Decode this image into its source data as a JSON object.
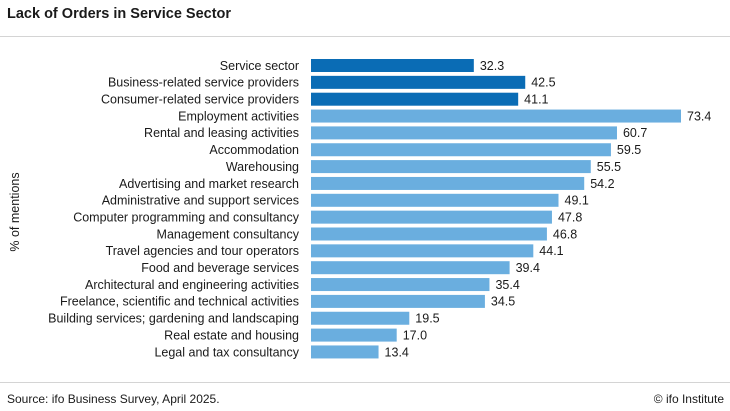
{
  "title": "Lack of Orders in Service Sector",
  "source": "Source: ifo Business Survey, April 2025.",
  "credit": "© ifo Institute",
  "colors": {
    "dark_bar": "#0a6cb5",
    "light_bar": "#6aaedf"
  },
  "chart_data": {
    "type": "bar",
    "orientation": "horizontal",
    "ylabel": "% of mentions",
    "categories": [
      "Service sector",
      "Business-related service providers",
      "Consumer-related service providers",
      "Employment activities",
      "Rental and leasing activities",
      "Accommodation",
      "Warehousing",
      "Advertising and market research",
      "Administrative and support services",
      "Computer programming and consultancy",
      "Management consultancy",
      "Travel agencies and tour operators",
      "Food and beverage services",
      "Architectural and engineering activities",
      "Freelance, scientific and technical activities",
      "Building services; gardening and landscaping",
      "Real estate and housing",
      "Legal and tax consultancy"
    ],
    "values": [
      32.3,
      42.5,
      41.1,
      73.4,
      60.7,
      59.5,
      55.5,
      54.2,
      49.1,
      47.8,
      46.8,
      44.1,
      39.4,
      35.4,
      34.5,
      19.5,
      17.0,
      13.4
    ],
    "value_labels": [
      "32.3",
      "42.5",
      "41.1",
      "73.4",
      "60.7",
      "59.5",
      "55.5",
      "54.2",
      "49.1",
      "47.8",
      "46.8",
      "44.1",
      "39.4",
      "35.4",
      "34.5",
      "19.5",
      "17.0",
      "13.4"
    ],
    "highlighted": [
      true,
      true,
      true,
      false,
      false,
      false,
      false,
      false,
      false,
      false,
      false,
      false,
      false,
      false,
      false,
      false,
      false,
      false
    ],
    "xlim": [
      0,
      73.4
    ],
    "grid": false,
    "legend": "none"
  }
}
